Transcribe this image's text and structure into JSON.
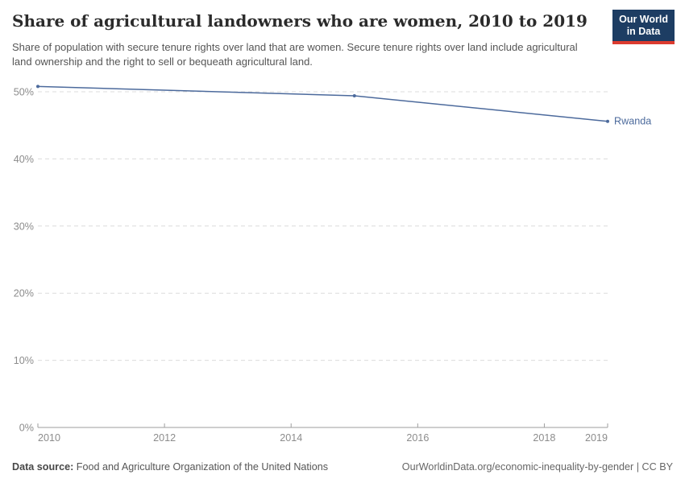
{
  "header": {
    "title": "Share of agricultural landowners who are women, 2010 to 2019",
    "subtitle": "Share of population with secure tenure rights over land that are women. Secure tenure rights over land include agricultural land ownership and the right to sell or bequeath agricultural land.",
    "logo": {
      "line1": "Our World",
      "line2": "in Data"
    }
  },
  "chart_data": {
    "type": "line",
    "title": "Share of agricultural landowners who are women, 2010 to 2019",
    "unit": "%",
    "xlim": [
      2010,
      2019
    ],
    "ylim": [
      0,
      50
    ],
    "x_ticks": [
      2010,
      2012,
      2014,
      2016,
      2018,
      2019
    ],
    "x_tick_labels": [
      "2010",
      "2012",
      "2014",
      "2016",
      "2018",
      "2019"
    ],
    "y_ticks": [
      0,
      10,
      20,
      30,
      40,
      50
    ],
    "y_tick_labels": [
      "0%",
      "10%",
      "20%",
      "30%",
      "40%",
      "50%"
    ],
    "grid": "horizontal dashed gridlines, solid baseline at 0%",
    "legend_position": "end-of-line label",
    "series": [
      {
        "name": "Rwanda",
        "color": "#4C6A9C",
        "points": [
          {
            "x": 2010,
            "y": 50.8
          },
          {
            "x": 2015,
            "y": 49.4
          },
          {
            "x": 2019,
            "y": 45.6
          }
        ]
      }
    ]
  },
  "footer": {
    "datasource_label": "Data source:",
    "datasource_value": "Food and Agriculture Organization of the United Nations",
    "link": "OurWorldinData.org/economic-inequality-by-gender | CC BY"
  },
  "colors": {
    "line": "#4C6A9C",
    "gridline": "#dcdcdc",
    "axis": "#9e9e9e",
    "tick_label": "#8c8c8c",
    "logo_navy": "#1d3d63",
    "logo_red": "#dc3b2f"
  }
}
